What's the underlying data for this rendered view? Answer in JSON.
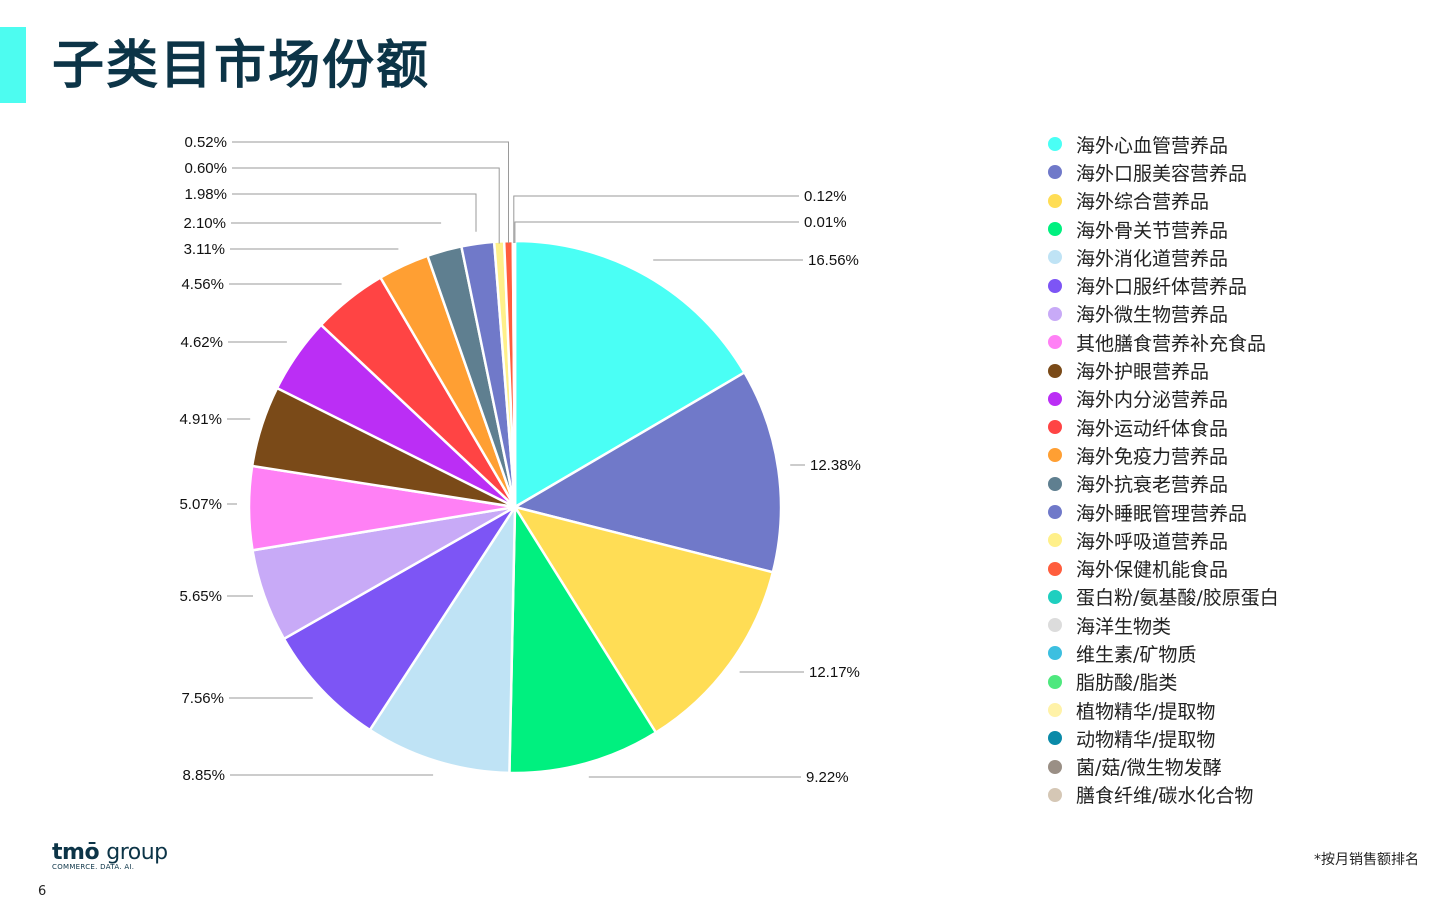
{
  "page": {
    "title": "子类目市场份额",
    "page_number": "6",
    "footnote": "*按月销售额排名",
    "logo": {
      "main": "tmō",
      "group": "group",
      "tagline": "COMMERCE. DATA. AI."
    },
    "accent_color": "#4dfcf0",
    "title_color": "#0c3447"
  },
  "chart_data": {
    "type": "pie",
    "title": "",
    "slices": [
      {
        "name": "海外心血管营养品",
        "value": 16.56,
        "label": "16.56%",
        "color": "#4afff5"
      },
      {
        "name": "海外口服美容营养品",
        "value": 12.38,
        "label": "12.38%",
        "color": "#7079c9"
      },
      {
        "name": "海外综合营养品",
        "value": 12.17,
        "label": "12.17%",
        "color": "#ffdd55"
      },
      {
        "name": "海外骨关节营养品",
        "value": 9.22,
        "label": "9.22%",
        "color": "#00f07f"
      },
      {
        "name": "海外消化道营养品",
        "value": 8.85,
        "label": "8.85%",
        "color": "#bfe3f5"
      },
      {
        "name": "海外口服纤体营养品",
        "value": 7.56,
        "label": "7.56%",
        "color": "#7d55f5"
      },
      {
        "name": "海外微生物营养品",
        "value": 5.65,
        "label": "5.65%",
        "color": "#c8aaf7"
      },
      {
        "name": "其他膳食营养补充食品",
        "value": 5.07,
        "label": "5.07%",
        "color": "#ff80f5"
      },
      {
        "name": "海外护眼营养品",
        "value": 4.91,
        "label": "4.91%",
        "color": "#7a4a18"
      },
      {
        "name": "海外内分泌营养品",
        "value": 4.62,
        "label": "4.62%",
        "color": "#bb2ef5"
      },
      {
        "name": "海外运动纤体食品",
        "value": 4.56,
        "label": "4.56%",
        "color": "#ff4444"
      },
      {
        "name": "海外免疫力营养品",
        "value": 3.11,
        "label": "3.11%",
        "color": "#ff9f33"
      },
      {
        "name": "海外抗衰老营养品",
        "value": 2.1,
        "label": "2.10%",
        "color": "#5f7f90"
      },
      {
        "name": "海外睡眠管理营养品",
        "value": 1.98,
        "label": "1.98%",
        "color": "#7079c9"
      },
      {
        "name": "海外呼吸道营养品",
        "value": 0.6,
        "label": "0.60%",
        "color": "#fff08a"
      },
      {
        "name": "海外保健机能食品",
        "value": 0.52,
        "label": "0.52%",
        "color": "#ff5d3d"
      },
      {
        "name": "蛋白粉/氨基酸/胶原蛋白",
        "value": 0.12,
        "label": "0.12%",
        "color": "#1fcfbf"
      },
      {
        "name": "海洋生物类",
        "value": 0.01,
        "label": "0.01%",
        "color": "#dcdcdc"
      }
    ],
    "legend": [
      {
        "name": "海外心血管营养品",
        "color": "#4afff5"
      },
      {
        "name": "海外口服美容营养品",
        "color": "#7079c9"
      },
      {
        "name": "海外综合营养品",
        "color": "#ffdd55"
      },
      {
        "name": "海外骨关节营养品",
        "color": "#00f07f"
      },
      {
        "name": "海外消化道营养品",
        "color": "#bfe3f5"
      },
      {
        "name": "海外口服纤体营养品",
        "color": "#7d55f5"
      },
      {
        "name": "海外微生物营养品",
        "color": "#c8aaf7"
      },
      {
        "name": "其他膳食营养补充食品",
        "color": "#ff80f5"
      },
      {
        "name": "海外护眼营养品",
        "color": "#7a4a18"
      },
      {
        "name": "海外内分泌营养品",
        "color": "#bb2ef5"
      },
      {
        "name": "海外运动纤体食品",
        "color": "#ff4444"
      },
      {
        "name": "海外免疫力营养品",
        "color": "#ff9f33"
      },
      {
        "name": "海外抗衰老营养品",
        "color": "#5f7f90"
      },
      {
        "name": "海外睡眠管理营养品",
        "color": "#7079c9"
      },
      {
        "name": "海外呼吸道营养品",
        "color": "#fff08a"
      },
      {
        "name": "海外保健机能食品",
        "color": "#ff5d3d"
      },
      {
        "name": "蛋白粉/氨基酸/胶原蛋白",
        "color": "#1fcfbf"
      },
      {
        "name": "海洋生物类",
        "color": "#dcdcdc"
      },
      {
        "name": "维生素/矿物质",
        "color": "#3dbfe0"
      },
      {
        "name": "脂肪酸/脂类",
        "color": "#4ee87e"
      },
      {
        "name": "植物精华/提取物",
        "color": "#fff2a8"
      },
      {
        "name": "动物精华/提取物",
        "color": "#0a8aa8"
      },
      {
        "name": "菌/菇/微生物发酵",
        "color": "#9a8f85"
      },
      {
        "name": "膳食纤维/碳水化合物",
        "color": "#d5c7b5"
      }
    ],
    "legend_position": "right"
  }
}
